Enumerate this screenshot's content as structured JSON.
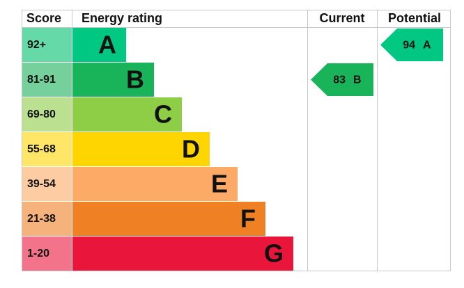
{
  "header": {
    "score": "Score",
    "rating": "Energy rating",
    "current": "Current",
    "potential": "Potential"
  },
  "bands": [
    {
      "score": "92+",
      "letter": "A",
      "color": "#00c781",
      "score_color": "#66d9a8"
    },
    {
      "score": "81-91",
      "letter": "B",
      "color": "#19b459",
      "score_color": "#75d09b"
    },
    {
      "score": "69-80",
      "letter": "C",
      "color": "#8dce46",
      "score_color": "#bbe190"
    },
    {
      "score": "55-68",
      "letter": "D",
      "color": "#ffd500",
      "score_color": "#ffe666"
    },
    {
      "score": "39-54",
      "letter": "E",
      "color": "#fcaa65",
      "score_color": "#fdcca3"
    },
    {
      "score": "21-38",
      "letter": "F",
      "color": "#ef8023",
      "score_color": "#f5b37b"
    },
    {
      "score": "1-20",
      "letter": "G",
      "color": "#e9153b",
      "score_color": "#f2738a"
    }
  ],
  "current": {
    "value": 83,
    "letter": "B"
  },
  "potential": {
    "value": 94,
    "letter": "A"
  }
}
